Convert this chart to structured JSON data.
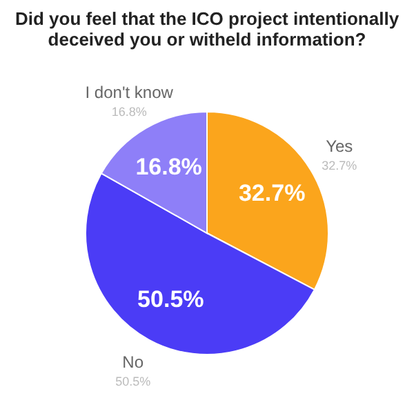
{
  "chart_data": {
    "type": "pie",
    "title": "Did you feel that the ICO project intentionally deceived you or witheld information?",
    "categories": [
      "Yes",
      "No",
      "I don't know"
    ],
    "values": [
      32.7,
      50.5,
      16.8
    ],
    "value_labels": [
      "32.7%",
      "50.5%",
      "16.8%"
    ],
    "colors": [
      "#fba51c",
      "#4b3cf6",
      "#8e7ff8"
    ],
    "legend": false
  }
}
